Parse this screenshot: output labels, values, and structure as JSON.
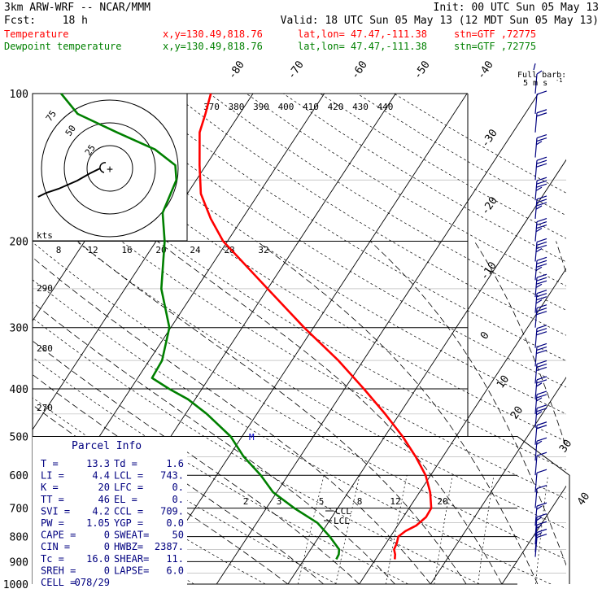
{
  "header": {
    "model": "3km ARW-WRF -- NCAR/MMM",
    "init": "Init: 00 UTC Sun 05 May 13",
    "fcst_label": "Fcst:",
    "fcst_value": "18 h",
    "valid": "Valid: 18 UTC Sun 05 May 13 (12 MDT Sun 05 May 13)",
    "rows": [
      {
        "name": "Temperature",
        "loc": "x,y=130.49,818.76",
        "latlon": "lat,lon= 47.47,-111.38",
        "stn": "stn=GTF ,72775",
        "color": "#ff0000"
      },
      {
        "name": "Dewpoint temperature",
        "loc": "x,y=130.49,818.76",
        "latlon": "lat,lon= 47.47,-111.38",
        "stn": "stn=GTF ,72775",
        "color": "#008000"
      }
    ]
  },
  "barb_legend": {
    "title": "Full barb:",
    "value": "5 m s",
    "exp": "-1"
  },
  "hodograph": {
    "unit": "kts",
    "rings": [
      "25",
      "50",
      "75"
    ]
  },
  "mixing_ratio_labels": [
    "2",
    "3",
    "5",
    "8",
    "12",
    "20"
  ],
  "annotations": {
    "ccl": "CCL",
    "lcl": "LCL"
  },
  "parcel_info": {
    "title": "Parcel Info",
    "rows": [
      [
        "T  =",
        "13.3",
        "Td =",
        "1.6"
      ],
      [
        "LI =",
        "4.4",
        "LCL =",
        "743."
      ],
      [
        "K  =",
        "20",
        "LFC =",
        "0."
      ],
      [
        "TT =",
        "46",
        "EL =",
        "0."
      ],
      [
        "SVI =",
        "4.2",
        "CCL =",
        "709."
      ],
      [
        "PW =",
        "1.05",
        "YGP =",
        "0.0"
      ],
      [
        "CAPE =",
        "0",
        "SWEAT=",
        "50"
      ],
      [
        "CIN =",
        "0",
        "HWBZ=",
        "2387."
      ],
      [
        "Tc =",
        "16.0",
        "SHEAR=",
        "11."
      ],
      [
        "SREH =",
        "0",
        "LAPSE=",
        "6.0"
      ],
      [
        "CELL =",
        "078/29",
        "",
        ""
      ]
    ]
  },
  "chart_data": {
    "type": "line",
    "title": "",
    "y_axis": {
      "label": "",
      "scale": "log",
      "ylim": [
        1000,
        100
      ],
      "ticks": [
        100,
        200,
        300,
        400,
        500,
        600,
        700,
        800,
        900,
        1000
      ]
    },
    "isotherm_labels_top": [
      "-80",
      "-70",
      "-60",
      "-50",
      "-40"
    ],
    "isotherm_labels_right": [
      "-30",
      "-20",
      "-10",
      "0",
      "10",
      "20",
      "30",
      "40"
    ],
    "theta_labels_top": [
      "370",
      "380",
      "390",
      "400",
      "410",
      "420",
      "430",
      "440"
    ],
    "theta_labels_left": [
      "290",
      "280",
      "270"
    ],
    "thetae_labels": [
      "8",
      "12",
      "16",
      "20",
      "24",
      "28",
      "32"
    ],
    "series": [
      {
        "name": "Temperature",
        "color": "#ff0000",
        "points": [
          [
            890,
            2.7
          ],
          [
            870,
            2.3
          ],
          [
            850,
            1.7
          ],
          [
            825,
            1.5
          ],
          [
            800,
            1.1
          ],
          [
            780,
            1.6
          ],
          [
            760,
            2.6
          ],
          [
            730,
            3.2
          ],
          [
            700,
            3.1
          ],
          [
            650,
            1.5
          ],
          [
            600,
            -0.7
          ],
          [
            550,
            -3.8
          ],
          [
            500,
            -7.5
          ],
          [
            450,
            -12.0
          ],
          [
            400,
            -17.3
          ],
          [
            350,
            -23.5
          ],
          [
            300,
            -31.3
          ],
          [
            250,
            -40.0
          ],
          [
            225,
            -45.0
          ],
          [
            200,
            -50.6
          ],
          [
            180,
            -54.4
          ],
          [
            160,
            -58.1
          ],
          [
            140,
            -60.9
          ],
          [
            120,
            -63.9
          ],
          [
            110,
            -64.8
          ],
          [
            100,
            -65.9
          ]
        ]
      },
      {
        "name": "Dewpoint temperature",
        "color": "#008000",
        "points": [
          [
            890,
            -5.5
          ],
          [
            870,
            -5.6
          ],
          [
            850,
            -6.0
          ],
          [
            800,
            -8.5
          ],
          [
            750,
            -11.5
          ],
          [
            700,
            -16.1
          ],
          [
            650,
            -20.5
          ],
          [
            600,
            -23.8
          ],
          [
            550,
            -27.9
          ],
          [
            500,
            -31.6
          ],
          [
            450,
            -37.0
          ],
          [
            420,
            -41.0
          ],
          [
            400,
            -44.6
          ],
          [
            380,
            -48.0
          ],
          [
            350,
            -48.2
          ],
          [
            300,
            -50.2
          ],
          [
            250,
            -54.9
          ],
          [
            200,
            -58.8
          ],
          [
            175,
            -61.7
          ],
          [
            150,
            -62.8
          ],
          [
            140,
            -64.3
          ],
          [
            130,
            -68.6
          ],
          [
            120,
            -75.5
          ],
          [
            110,
            -82.7
          ],
          [
            100,
            -86.9
          ]
        ]
      }
    ],
    "wind_barbs": [
      {
        "p": 100,
        "speed": 5,
        "dir": 270
      },
      {
        "p": 110,
        "speed": 10,
        "dir": 270
      },
      {
        "p": 120,
        "speed": 20,
        "dir": 275
      },
      {
        "p": 135,
        "speed": 25,
        "dir": 280
      },
      {
        "p": 150,
        "speed": 30,
        "dir": 285
      },
      {
        "p": 165,
        "speed": 35,
        "dir": 285
      },
      {
        "p": 180,
        "speed": 35,
        "dir": 285
      },
      {
        "p": 200,
        "speed": 35,
        "dir": 285
      },
      {
        "p": 220,
        "speed": 35,
        "dir": 285
      },
      {
        "p": 240,
        "speed": 35,
        "dir": 285
      },
      {
        "p": 260,
        "speed": 35,
        "dir": 285
      },
      {
        "p": 280,
        "speed": 35,
        "dir": 285
      },
      {
        "p": 300,
        "speed": 30,
        "dir": 285
      },
      {
        "p": 330,
        "speed": 30,
        "dir": 285
      },
      {
        "p": 360,
        "speed": 30,
        "dir": 285
      },
      {
        "p": 390,
        "speed": 30,
        "dir": 285
      },
      {
        "p": 420,
        "speed": 25,
        "dir": 285
      },
      {
        "p": 450,
        "speed": 25,
        "dir": 285
      },
      {
        "p": 480,
        "speed": 25,
        "dir": 285
      },
      {
        "p": 520,
        "speed": 20,
        "dir": 285
      },
      {
        "p": 560,
        "speed": 15,
        "dir": 290
      },
      {
        "p": 600,
        "speed": 10,
        "dir": 300
      },
      {
        "p": 650,
        "speed": 10,
        "dir": 310
      },
      {
        "p": 700,
        "speed": 10,
        "dir": 320
      },
      {
        "p": 760,
        "speed": 15,
        "dir": 300
      },
      {
        "p": 800,
        "speed": 15,
        "dir": 290
      },
      {
        "p": 830,
        "speed": 15,
        "dir": 280
      },
      {
        "p": 860,
        "speed": 15,
        "dir": 270
      },
      {
        "p": 880,
        "speed": 10,
        "dir": 260
      }
    ],
    "hodograph_trace": [
      [
        0,
        0
      ],
      [
        -10,
        5
      ],
      [
        -22,
        12
      ],
      [
        -40,
        20
      ],
      [
        -52,
        24
      ],
      [
        -60,
        28
      ]
    ]
  }
}
